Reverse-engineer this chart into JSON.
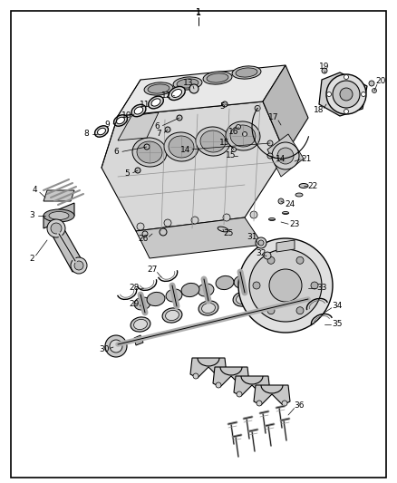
{
  "background_color": "#ffffff",
  "border_color": "#000000",
  "line_color": "#000000",
  "text_color": "#000000",
  "fig_width": 4.38,
  "fig_height": 5.33,
  "dpi": 100,
  "gray_light": "#e0e0e0",
  "gray_mid": "#c0c0c0",
  "gray_dark": "#a0a0a0"
}
